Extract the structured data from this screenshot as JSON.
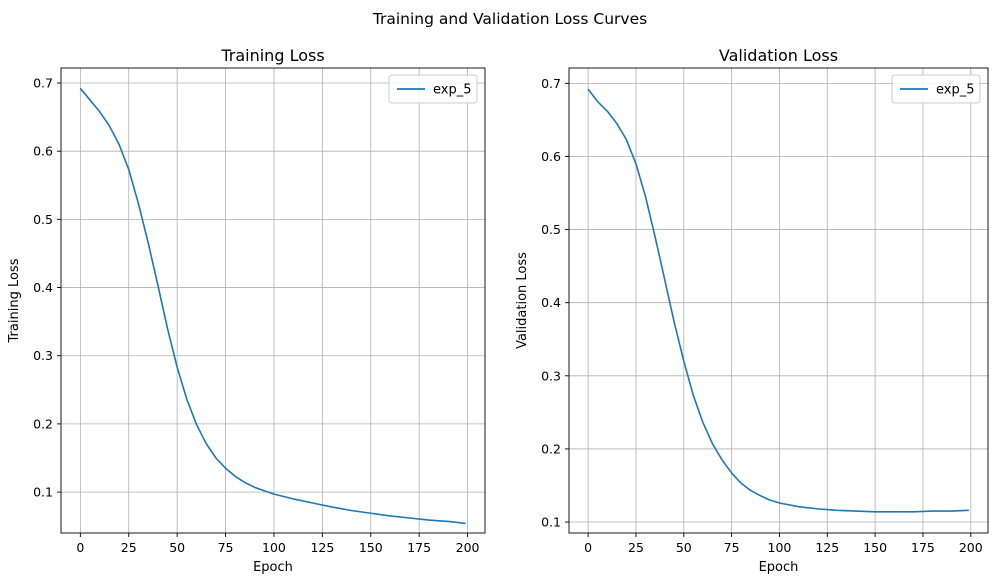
{
  "figure_title": "Training and Validation Loss Curves",
  "colors": {
    "series": "#1f77b4",
    "grid": "#b0b0b0",
    "axes": "#000000",
    "legend_border": "#cccccc"
  },
  "chart_data": [
    {
      "type": "line",
      "title": "Training Loss",
      "xlabel": "Epoch",
      "ylabel": "Training Loss",
      "xlim": [
        -10,
        209
      ],
      "ylim": [
        0.04,
        0.722
      ],
      "xticks": [
        0,
        25,
        50,
        75,
        100,
        125,
        150,
        175,
        200
      ],
      "yticks": [
        0.1,
        0.2,
        0.3,
        0.4,
        0.5,
        0.6,
        0.7
      ],
      "grid": true,
      "legend": "top-right",
      "series": [
        {
          "name": "exp_5",
          "x": [
            0,
            5,
            10,
            15,
            20,
            25,
            30,
            35,
            40,
            45,
            50,
            55,
            60,
            65,
            70,
            75,
            80,
            85,
            90,
            95,
            100,
            110,
            120,
            130,
            140,
            150,
            160,
            170,
            180,
            190,
            199
          ],
          "y": [
            0.692,
            0.675,
            0.658,
            0.637,
            0.61,
            0.573,
            0.523,
            0.466,
            0.404,
            0.34,
            0.283,
            0.236,
            0.199,
            0.171,
            0.15,
            0.135,
            0.123,
            0.114,
            0.107,
            0.102,
            0.097,
            0.09,
            0.084,
            0.078,
            0.073,
            0.069,
            0.065,
            0.062,
            0.059,
            0.057,
            0.054
          ]
        }
      ]
    },
    {
      "type": "line",
      "title": "Validation Loss",
      "xlabel": "Epoch",
      "ylabel": "Validation Loss",
      "xlim": [
        -10,
        209
      ],
      "ylim": [
        0.085,
        0.721
      ],
      "xticks": [
        0,
        25,
        50,
        75,
        100,
        125,
        150,
        175,
        200
      ],
      "yticks": [
        0.1,
        0.2,
        0.3,
        0.4,
        0.5,
        0.6,
        0.7
      ],
      "grid": true,
      "legend": "top-right",
      "series": [
        {
          "name": "exp_5",
          "x": [
            0,
            5,
            10,
            15,
            20,
            25,
            30,
            35,
            40,
            45,
            50,
            55,
            60,
            65,
            70,
            75,
            80,
            85,
            90,
            95,
            100,
            110,
            120,
            130,
            140,
            150,
            160,
            170,
            180,
            190,
            199
          ],
          "y": [
            0.692,
            0.675,
            0.662,
            0.645,
            0.623,
            0.59,
            0.545,
            0.49,
            0.432,
            0.373,
            0.32,
            0.273,
            0.236,
            0.207,
            0.185,
            0.167,
            0.153,
            0.143,
            0.136,
            0.13,
            0.126,
            0.121,
            0.118,
            0.116,
            0.115,
            0.114,
            0.114,
            0.114,
            0.115,
            0.115,
            0.116
          ]
        }
      ]
    }
  ]
}
